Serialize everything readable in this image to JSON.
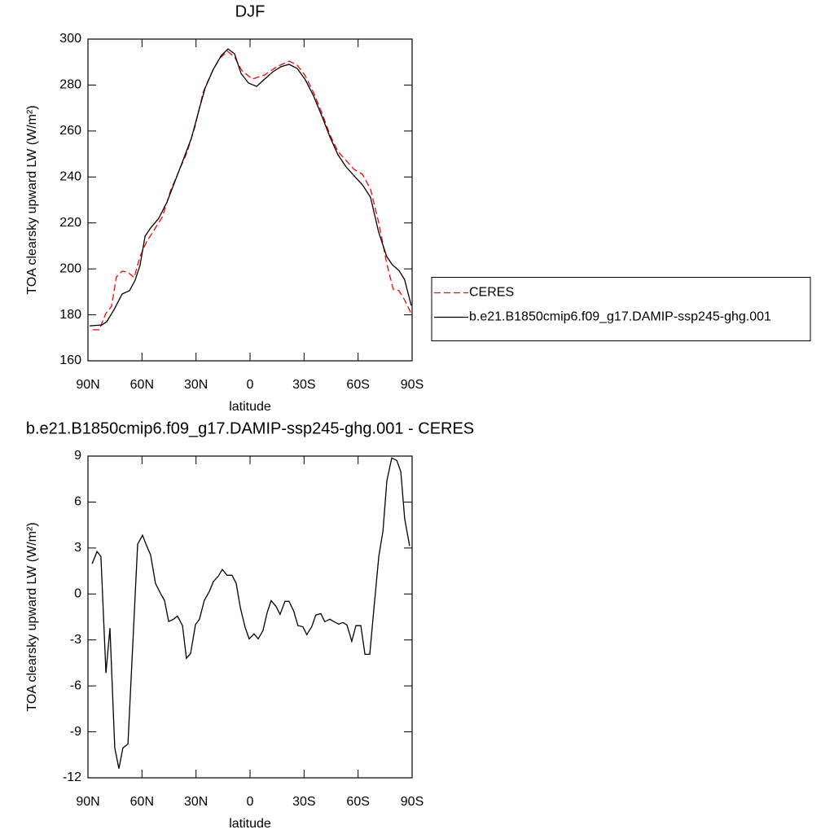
{
  "chart_data": [
    {
      "type": "line",
      "title": "DJF",
      "xlabel": "latitude",
      "ylabel": "TOA clearsky upward LW (W/m²)",
      "xlim": [
        90,
        -90
      ],
      "xticks": [
        {
          "value": 90,
          "label": "90N"
        },
        {
          "value": 60,
          "label": "60N"
        },
        {
          "value": 30,
          "label": "30N"
        },
        0,
        {
          "value": -30,
          "label": "30S"
        },
        {
          "value": -60,
          "label": "60S"
        },
        {
          "value": -90,
          "label": "90S"
        }
      ],
      "ylim": [
        160,
        300
      ],
      "yticks": [
        160,
        180,
        200,
        220,
        240,
        260,
        280,
        300
      ],
      "legend": "right",
      "series": [
        {
          "name": "CERES",
          "color": "#ff0000",
          "linestyle": "dashed",
          "x": [
            87.3,
            83.7,
            80.1,
            76.9,
            74.2,
            71,
            67.9,
            64.3,
            61.1,
            57.5,
            53.1,
            48.6,
            44.1,
            39.5,
            35,
            30.5,
            26,
            21.5,
            17,
            12.5,
            8.6,
            4.7,
            -1.2,
            -8.1,
            -14.9,
            -21.7,
            -26.2,
            -30.7,
            -35.3,
            -39.8,
            -44.3,
            -48.8,
            -53.3,
            -57.8,
            -62.4,
            -66.9,
            -71.4,
            -75.9,
            -79.5,
            -82.7,
            -85.8,
            -89.5
          ],
          "values": [
            173.5,
            173.5,
            180.6,
            183.7,
            196.5,
            199,
            198.6,
            196.2,
            205.4,
            211.7,
            217.1,
            222.7,
            234.1,
            242.6,
            250.7,
            262.1,
            277,
            285.1,
            291.5,
            294.7,
            292.2,
            286.5,
            282.6,
            284.4,
            288,
            290.4,
            288.7,
            284,
            276.6,
            268.1,
            258.5,
            251.1,
            247.2,
            243.3,
            241.2,
            234.8,
            220.3,
            202.5,
            191.2,
            190.5,
            186.6,
            180.6
          ]
        },
        {
          "name": "b.e21.B1850cmip6.f09_g17.DAMIP-ssp245-ghg.001",
          "color": "#000000",
          "linestyle": "solid",
          "x": [
            89.1,
            82.3,
            79.6,
            75.5,
            71,
            66.9,
            63.8,
            61.1,
            58.3,
            55.2,
            50.7,
            46.1,
            41.6,
            37.1,
            32.6,
            28.1,
            24.9,
            20.4,
            15.9,
            12.2,
            8.6,
            5,
            0.9,
            -3.6,
            -8.1,
            -12.7,
            -17.2,
            -21.7,
            -26.2,
            -30.7,
            -35.3,
            -39.8,
            -44.3,
            -48.8,
            -53.3,
            -57.8,
            -62.4,
            -66.9,
            -71.4,
            -75.9,
            -79,
            -82.7,
            -85.8,
            -89.5
          ],
          "values": [
            175.2,
            175.6,
            177,
            182.3,
            189.1,
            190.5,
            195.1,
            201.5,
            214.2,
            217.8,
            222,
            229.1,
            238.3,
            247.5,
            256.8,
            269.9,
            278.7,
            286.9,
            292.9,
            295.7,
            293.6,
            285.1,
            280.9,
            279.4,
            282.6,
            285.8,
            288,
            289,
            287.2,
            282.3,
            275.2,
            266.7,
            257.5,
            249.7,
            244.4,
            240.5,
            236.6,
            231.2,
            216,
            205.4,
            201.8,
            199.3,
            195.4,
            184.1
          ]
        }
      ]
    },
    {
      "type": "line",
      "title": "b.e21.B1850cmip6.f09_g17.DAMIP-ssp245-ghg.001 - CERES",
      "xlabel": "latitude",
      "ylabel": "TOA clearsky upward LW (W/m²)",
      "xlim": [
        90,
        -90
      ],
      "xticks": [
        {
          "value": 90,
          "label": "90N"
        },
        {
          "value": 60,
          "label": "60N"
        },
        {
          "value": 30,
          "label": "30N"
        },
        0,
        {
          "value": -30,
          "label": "30S"
        },
        {
          "value": -60,
          "label": "60S"
        },
        {
          "value": -90,
          "label": "90S"
        }
      ],
      "ylim": [
        -12,
        9
      ],
      "yticks": [
        -12,
        -9,
        -6,
        -3,
        0,
        3,
        6,
        9
      ],
      "series": [
        {
          "color": "#000000",
          "linestyle": "solid",
          "x": [
            87.7,
            85,
            82.8,
            80,
            77.8,
            75.1,
            72.8,
            70.6,
            67.8,
            62.4,
            59.7,
            57.4,
            55.2,
            52.5,
            49.8,
            47.5,
            45.2,
            42.5,
            40.3,
            37.5,
            35.3,
            33,
            30.3,
            28.1,
            25.4,
            22.6,
            20.4,
            17.6,
            15.4,
            12.7,
            10,
            7.7,
            5.4,
            2.7,
            0.5,
            -2.2,
            -4.5,
            -7.2,
            -9.5,
            -11.7,
            -14.4,
            -16.7,
            -19.4,
            -21.6,
            -24.3,
            -26.6,
            -29.3,
            -31.5,
            -34.3,
            -36.5,
            -39.3,
            -41.5,
            -44.3,
            -46.6,
            -49.3,
            -51.6,
            -53.8,
            -56.5,
            -58.8,
            -61.5,
            -63.8,
            -66.5,
            -68.8,
            -71.5,
            -73.8,
            -76,
            -78.7,
            -81.5,
            -83.7,
            -85.9,
            -88.6
          ],
          "values": [
            1.97,
            2.77,
            2.45,
            -5.16,
            -2.23,
            -10.05,
            -11.4,
            -10.05,
            -9.8,
            3.25,
            3.83,
            3.14,
            2.55,
            0.69,
            0.05,
            -0.43,
            -1.8,
            -1.65,
            -1.44,
            -2.07,
            -4.2,
            -3.88,
            -2,
            -1.65,
            -0.43,
            0.16,
            0.8,
            1.17,
            1.6,
            1.22,
            1.22,
            0.69,
            -0.9,
            -2.18,
            -2.93,
            -2.6,
            -2.93,
            -2.39,
            -1.22,
            -0.43,
            -0.8,
            -1.33,
            -0.48,
            -0.48,
            -1.12,
            -2.07,
            -2.13,
            -2.66,
            -2.13,
            -1.38,
            -1.28,
            -1.81,
            -1.65,
            -1.81,
            -1.97,
            -1.86,
            -2.02,
            -3.09,
            -2.07,
            -2.07,
            -3.94,
            -3.94,
            -0.96,
            2.45,
            4.1,
            7.39,
            8.88,
            8.72,
            7.98,
            4.9,
            3.14
          ]
        }
      ]
    }
  ]
}
